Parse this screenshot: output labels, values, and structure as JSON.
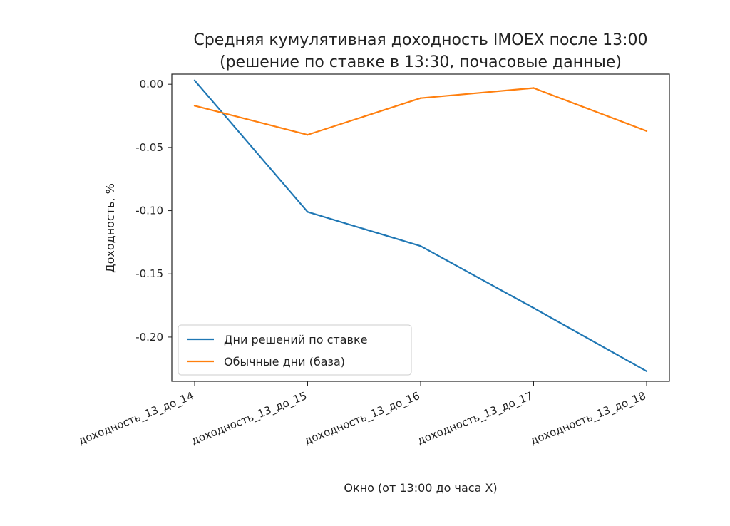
{
  "chart_data": {
    "type": "line",
    "title": "Средняя кумулятивная доходность IMOEX после 13:00",
    "subtitle": "(решение по ставке в 13:30, почасовые данные)",
    "xlabel": "Окно (от 13:00 до часа X)",
    "ylabel": "Доходность, %",
    "categories": [
      "доходность_13_до_14",
      "доходность_13_до_15",
      "доходность_13_до_16",
      "доходность_13_до_17",
      "доходность_13_до_18"
    ],
    "series": [
      {
        "name": "Дни решений по ставке",
        "color": "#1f77b4",
        "values": [
          0.003,
          -0.101,
          -0.128,
          -0.177,
          -0.227
        ]
      },
      {
        "name": "Обычные дни (база)",
        "color": "#ff7f0e",
        "values": [
          -0.017,
          -0.04,
          -0.011,
          -0.003,
          -0.037
        ]
      }
    ],
    "ylim": [
      -0.235,
      0.008
    ],
    "yticks": [
      0.0,
      -0.05,
      -0.1,
      -0.15,
      -0.2
    ],
    "ytick_labels": [
      "0.00",
      "-0.05",
      "-0.10",
      "-0.15",
      "-0.20"
    ],
    "grid": false,
    "legend_position": "lower-left"
  }
}
